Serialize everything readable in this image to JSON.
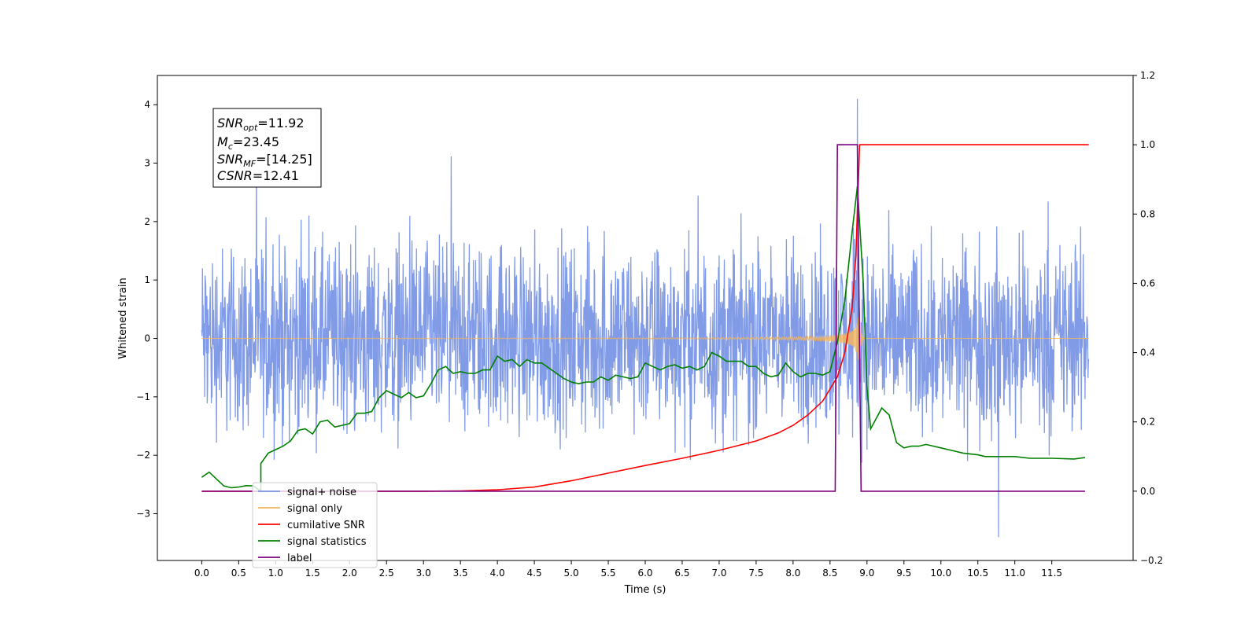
{
  "chart_data": {
    "type": "line",
    "title": "",
    "xlabel": "Time (s)",
    "ylabel": "Whitened strain",
    "y2label": "",
    "xlim": [
      -0.6,
      12.6
    ],
    "ylim": [
      -3.8,
      4.5
    ],
    "y2lim": [
      -0.2,
      1.2
    ],
    "x_ticks": [
      "0.0",
      "0.5",
      "1.0",
      "1.5",
      "2.0",
      "2.5",
      "3.0",
      "3.5",
      "4.0",
      "4.5",
      "5.0",
      "5.5",
      "6.0",
      "6.5",
      "7.0",
      "7.5",
      "8.0",
      "8.5",
      "9.0",
      "9.5",
      "10.0",
      "10.5",
      "11.0",
      "11.5"
    ],
    "y_ticks": [
      "−3",
      "−2",
      "−1",
      "0",
      "1",
      "2",
      "3",
      "4"
    ],
    "y2_ticks": [
      "−0.2",
      "0.0",
      "0.2",
      "0.4",
      "0.6",
      "0.8",
      "1.0",
      "1.2"
    ],
    "grid": false,
    "legend_position": "lower-left",
    "annotation": {
      "snr_opt": "=11.92",
      "mc": "=23.45",
      "snr_mf": "=[14.25]",
      "csnr": "=12.41"
    },
    "series": [
      {
        "name": "signal+ noise",
        "axis": "left",
        "color": "#7a96e6",
        "x_start": 0.0,
        "x_end": 12.0,
        "approx_band": [
          -2.0,
          2.0
        ],
        "peak": {
          "x": 8.87,
          "y": 4.1
        },
        "trough": {
          "x": 10.78,
          "y": -3.4
        }
      },
      {
        "name": "signal only",
        "axis": "left",
        "color": "#f5b55e",
        "x_start": 0.0,
        "x_end": 12.0,
        "merger_time": 8.9,
        "peak_amplitude": 0.55
      },
      {
        "name": "cumilative SNR",
        "axis": "right",
        "color": "#ff0000",
        "points": [
          [
            0,
            0
          ],
          [
            3,
            0
          ],
          [
            3.5,
            0.0008
          ],
          [
            4,
            0.004
          ],
          [
            4.5,
            0.012
          ],
          [
            5,
            0.03
          ],
          [
            5.5,
            0.052
          ],
          [
            6,
            0.074
          ],
          [
            6.5,
            0.095
          ],
          [
            7,
            0.118
          ],
          [
            7.5,
            0.145
          ],
          [
            7.8,
            0.168
          ],
          [
            8,
            0.19
          ],
          [
            8.2,
            0.22
          ],
          [
            8.4,
            0.26
          ],
          [
            8.6,
            0.33
          ],
          [
            8.7,
            0.4
          ],
          [
            8.8,
            0.53
          ],
          [
            8.85,
            0.68
          ],
          [
            8.9,
            1.0
          ],
          [
            12,
            1.0
          ]
        ]
      },
      {
        "name": "signal statistics",
        "axis": "right",
        "color": "#008000",
        "points": [
          [
            0,
            0.04
          ],
          [
            0.1,
            0.055
          ],
          [
            0.2,
            0.035
          ],
          [
            0.3,
            0.015
          ],
          [
            0.4,
            0.01
          ],
          [
            0.5,
            0.012
          ],
          [
            0.6,
            0.016
          ],
          [
            0.7,
            0.015
          ],
          [
            0.8,
            0.0
          ],
          [
            0.8,
            0.08
          ],
          [
            0.9,
            0.11
          ],
          [
            1.0,
            0.12
          ],
          [
            1.1,
            0.13
          ],
          [
            1.2,
            0.145
          ],
          [
            1.3,
            0.175
          ],
          [
            1.4,
            0.18
          ],
          [
            1.5,
            0.165
          ],
          [
            1.6,
            0.2
          ],
          [
            1.7,
            0.205
          ],
          [
            1.8,
            0.185
          ],
          [
            1.9,
            0.19
          ],
          [
            2.0,
            0.195
          ],
          [
            2.1,
            0.225
          ],
          [
            2.2,
            0.225
          ],
          [
            2.3,
            0.23
          ],
          [
            2.4,
            0.27
          ],
          [
            2.5,
            0.29
          ],
          [
            2.6,
            0.28
          ],
          [
            2.7,
            0.27
          ],
          [
            2.8,
            0.285
          ],
          [
            2.9,
            0.27
          ],
          [
            3.0,
            0.275
          ],
          [
            3.1,
            0.31
          ],
          [
            3.2,
            0.35
          ],
          [
            3.3,
            0.36
          ],
          [
            3.4,
            0.34
          ],
          [
            3.5,
            0.345
          ],
          [
            3.6,
            0.34
          ],
          [
            3.7,
            0.34
          ],
          [
            3.8,
            0.35
          ],
          [
            3.9,
            0.35
          ],
          [
            4.0,
            0.39
          ],
          [
            4.1,
            0.375
          ],
          [
            4.2,
            0.38
          ],
          [
            4.3,
            0.36
          ],
          [
            4.4,
            0.38
          ],
          [
            4.5,
            0.37
          ],
          [
            4.6,
            0.37
          ],
          [
            4.7,
            0.355
          ],
          [
            4.8,
            0.34
          ],
          [
            4.9,
            0.325
          ],
          [
            5.0,
            0.315
          ],
          [
            5.1,
            0.31
          ],
          [
            5.2,
            0.315
          ],
          [
            5.3,
            0.315
          ],
          [
            5.4,
            0.33
          ],
          [
            5.5,
            0.32
          ],
          [
            5.6,
            0.335
          ],
          [
            5.7,
            0.33
          ],
          [
            5.8,
            0.325
          ],
          [
            5.9,
            0.33
          ],
          [
            6.0,
            0.37
          ],
          [
            6.1,
            0.36
          ],
          [
            6.2,
            0.35
          ],
          [
            6.3,
            0.36
          ],
          [
            6.4,
            0.365
          ],
          [
            6.5,
            0.355
          ],
          [
            6.6,
            0.36
          ],
          [
            6.7,
            0.35
          ],
          [
            6.8,
            0.36
          ],
          [
            6.9,
            0.4
          ],
          [
            7.0,
            0.39
          ],
          [
            7.1,
            0.375
          ],
          [
            7.2,
            0.375
          ],
          [
            7.3,
            0.375
          ],
          [
            7.4,
            0.36
          ],
          [
            7.5,
            0.36
          ],
          [
            7.6,
            0.34
          ],
          [
            7.7,
            0.33
          ],
          [
            7.8,
            0.335
          ],
          [
            7.9,
            0.37
          ],
          [
            8.0,
            0.345
          ],
          [
            8.1,
            0.33
          ],
          [
            8.2,
            0.34
          ],
          [
            8.3,
            0.34
          ],
          [
            8.4,
            0.335
          ],
          [
            8.5,
            0.345
          ],
          [
            8.6,
            0.43
          ],
          [
            8.7,
            0.55
          ],
          [
            8.8,
            0.75
          ],
          [
            8.87,
            0.88
          ],
          [
            8.95,
            0.6
          ],
          [
            9.0,
            0.3
          ],
          [
            9.05,
            0.18
          ],
          [
            9.1,
            0.2
          ],
          [
            9.2,
            0.24
          ],
          [
            9.3,
            0.22
          ],
          [
            9.4,
            0.14
          ],
          [
            9.5,
            0.125
          ],
          [
            9.6,
            0.13
          ],
          [
            9.7,
            0.13
          ],
          [
            9.8,
            0.135
          ],
          [
            9.9,
            0.13
          ],
          [
            10.0,
            0.125
          ],
          [
            10.1,
            0.12
          ],
          [
            10.3,
            0.11
          ],
          [
            10.5,
            0.105
          ],
          [
            10.6,
            0.1
          ],
          [
            10.8,
            0.1
          ],
          [
            11.0,
            0.1
          ],
          [
            11.2,
            0.095
          ],
          [
            11.5,
            0.095
          ],
          [
            11.8,
            0.093
          ],
          [
            11.95,
            0.097
          ]
        ]
      },
      {
        "name": "label",
        "axis": "right",
        "color": "#800080",
        "points": [
          [
            0,
            0
          ],
          [
            8.57,
            0
          ],
          [
            8.6,
            1.0
          ],
          [
            8.87,
            1.0
          ],
          [
            8.92,
            0
          ],
          [
            11.95,
            0
          ]
        ]
      }
    ],
    "legend_entries": [
      "signal+ noise",
      "signal only",
      "cumilative SNR",
      "signal statistics",
      "label"
    ]
  }
}
